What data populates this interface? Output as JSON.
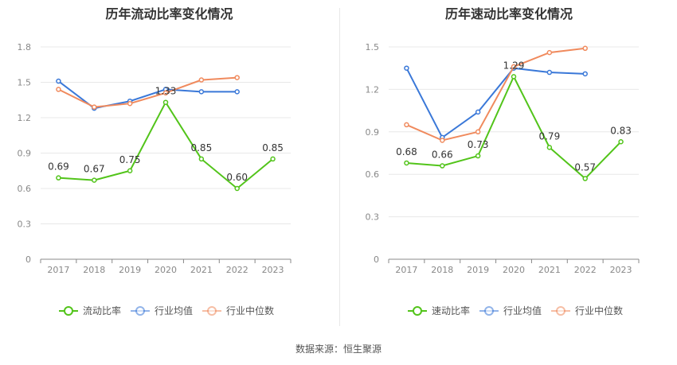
{
  "source_text": "数据来源：恒生聚源",
  "colors": {
    "primary": "#52c41a",
    "avg": "#3a78d8",
    "median": "#f08a5d",
    "grid": "#e8e8e8",
    "axis": "#888888"
  },
  "chart_data": [
    {
      "type": "line",
      "title": "历年流动比率变化情况",
      "categories": [
        "2017",
        "2018",
        "2019",
        "2020",
        "2021",
        "2022",
        "2023"
      ],
      "y_ticks": [
        "0",
        "0.3",
        "0.6",
        "0.9",
        "1.2",
        "1.5",
        "1.8"
      ],
      "ylim": [
        0,
        1.8
      ],
      "grid": true,
      "legend_position": "bottom",
      "series": [
        {
          "name": "流动比率",
          "color": "#52c41a",
          "values": [
            0.69,
            0.67,
            0.75,
            1.33,
            0.85,
            0.6,
            0.85
          ],
          "labels": [
            "0.69",
            "0.67",
            "0.75",
            "1.33",
            "0.85",
            "0.60",
            "0.85"
          ]
        },
        {
          "name": "行业均值",
          "color": "#3a78d8",
          "values": [
            1.51,
            1.28,
            1.34,
            1.44,
            1.42,
            1.42,
            null
          ]
        },
        {
          "name": "行业中位数",
          "color": "#f08a5d",
          "values": [
            1.44,
            1.29,
            1.32,
            1.41,
            1.52,
            1.54,
            null
          ]
        }
      ]
    },
    {
      "type": "line",
      "title": "历年速动比率变化情况",
      "categories": [
        "2017",
        "2018",
        "2019",
        "2020",
        "2021",
        "2022",
        "2023"
      ],
      "y_ticks": [
        "0",
        "0.3",
        "0.6",
        "0.9",
        "1.2",
        "1.5"
      ],
      "ylim": [
        0,
        1.5
      ],
      "grid": true,
      "legend_position": "bottom",
      "series": [
        {
          "name": "速动比率",
          "color": "#52c41a",
          "values": [
            0.68,
            0.66,
            0.73,
            1.29,
            0.79,
            0.57,
            0.83
          ],
          "labels": [
            "0.68",
            "0.66",
            "0.73",
            "1.29",
            "0.79",
            "0.57",
            "0.83"
          ]
        },
        {
          "name": "行业均值",
          "color": "#3a78d8",
          "values": [
            1.35,
            0.86,
            1.04,
            1.35,
            1.32,
            1.31,
            null
          ]
        },
        {
          "name": "行业中位数",
          "color": "#f08a5d",
          "values": [
            0.95,
            0.84,
            0.9,
            1.36,
            1.46,
            1.49,
            null
          ]
        }
      ]
    }
  ]
}
